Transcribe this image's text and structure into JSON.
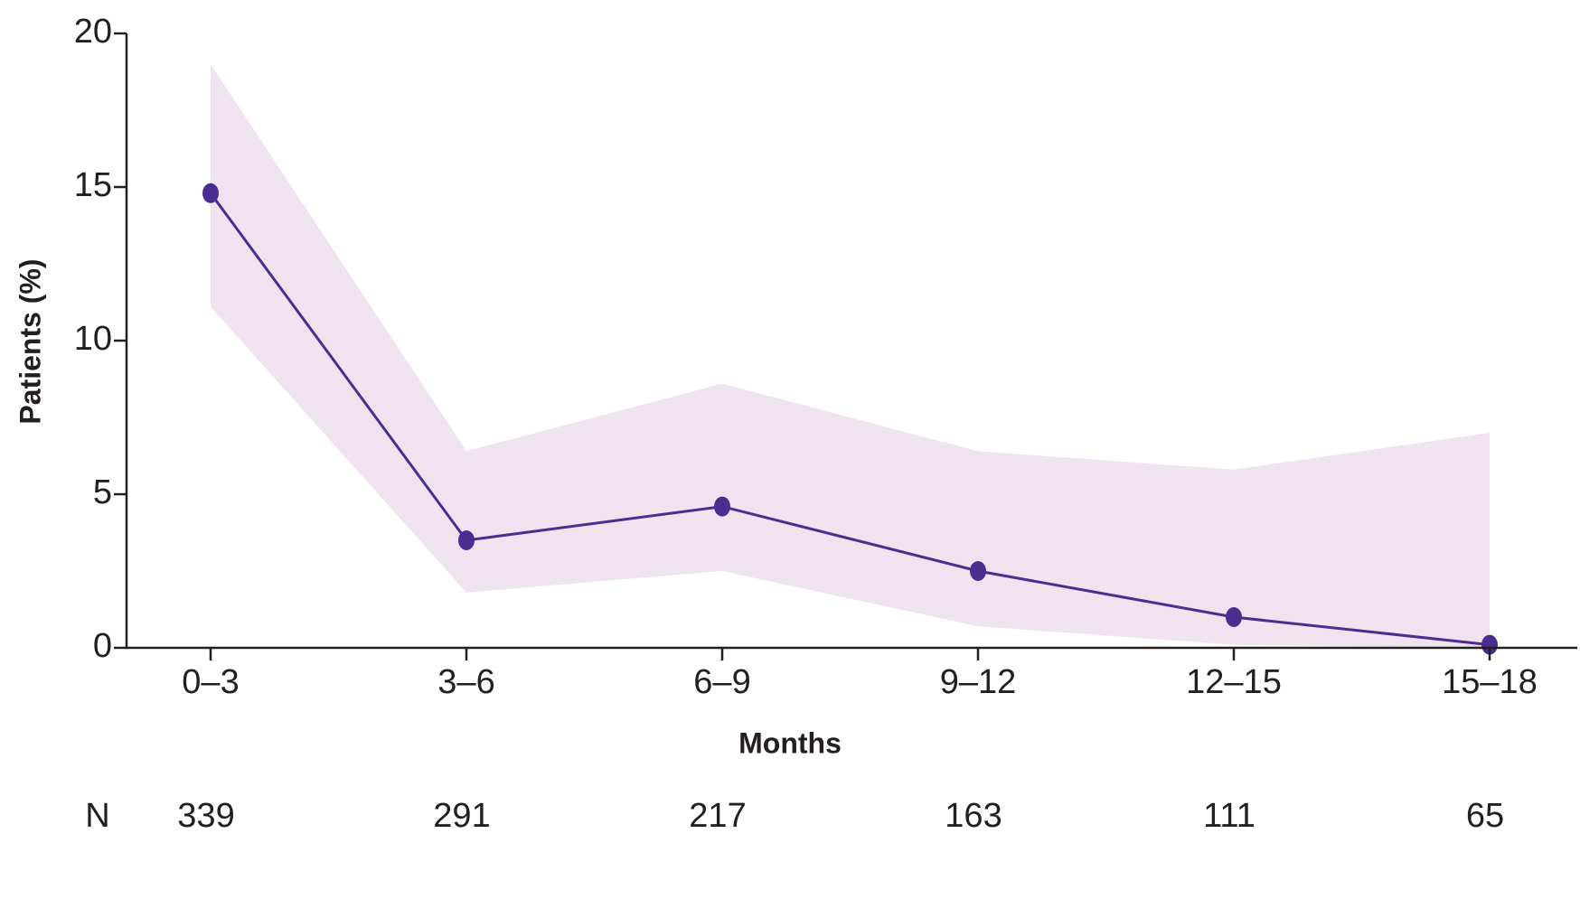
{
  "chart_data": {
    "type": "line",
    "ylabel": "Patients (%)",
    "xlabel": "Months",
    "categories": [
      "0–3",
      "3–6",
      "6–9",
      "9–12",
      "12–15",
      "15–18"
    ],
    "series": [
      {
        "color": "#4b2c91",
        "band_color": "#efe3ef",
        "values": [
          14.8,
          3.5,
          4.6,
          2.5,
          1.0,
          0.1
        ],
        "upper": [
          19.0,
          6.4,
          8.6,
          6.4,
          5.8,
          7.0
        ],
        "lower": [
          11.1,
          1.8,
          2.5,
          0.7,
          0.1,
          0.0
        ]
      }
    ],
    "ylim": [
      0,
      20
    ],
    "yticks": [
      0,
      5,
      10,
      15,
      20
    ],
    "n_label": "N",
    "n_values": [
      339,
      291,
      217,
      163,
      111,
      65
    ]
  }
}
